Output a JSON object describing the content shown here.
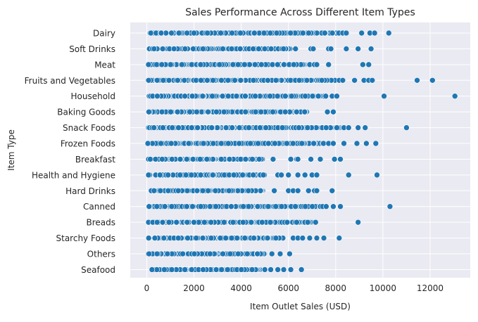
{
  "chart_data": {
    "type": "scatter",
    "title": "Sales Performance Across Different Item Types",
    "xlabel": "Item Outlet Sales (USD)",
    "ylabel": "Item Type",
    "xlim": [
      -700,
      13700
    ],
    "x_ticks": [
      "0",
      "2000",
      "4000",
      "6000",
      "8000",
      "10000",
      "12000"
    ],
    "grid": true,
    "legend": "none",
    "colors": {
      "point": "#1f77b4",
      "plot_bg": "#eaeaf2",
      "grid": "#ffffff"
    },
    "categories": [
      "Dairy",
      "Soft Drinks",
      "Meat",
      "Fruits and Vegetables",
      "Household",
      "Baking Goods",
      "Snack Foods",
      "Frozen Foods",
      "Breakfast",
      "Health and Hygiene",
      "Hard Drinks",
      "Canned",
      "Breads",
      "Starchy Foods",
      "Others",
      "Seafood"
    ],
    "series": [
      {
        "category": "Dairy",
        "dense_range": [
          40,
          8200
        ],
        "x": [
          8300,
          8450,
          9100,
          9450,
          9650,
          10250
        ]
      },
      {
        "category": "Soft Drinks",
        "dense_range": [
          40,
          6100
        ],
        "x": [
          6300,
          6950,
          7050,
          7700,
          7800,
          8450,
          8950,
          9500
        ]
      },
      {
        "category": "Meat",
        "dense_range": [
          40,
          6700
        ],
        "x": [
          6900,
          7100,
          7200,
          7700,
          9150,
          9400
        ]
      },
      {
        "category": "Fruits and Vegetables",
        "dense_range": [
          40,
          8000
        ],
        "x": [
          8150,
          8300,
          8800,
          9200,
          9400,
          9550,
          11450,
          12100
        ]
      },
      {
        "category": "Household",
        "dense_range": [
          40,
          7700
        ],
        "x": [
          7850,
          8050,
          10050,
          13050
        ]
      },
      {
        "category": "Baking Goods",
        "dense_range": [
          40,
          6800
        ],
        "x": [
          7650,
          7900
        ]
      },
      {
        "category": "Snack Foods",
        "dense_range": [
          40,
          8200
        ],
        "x": [
          8350,
          8550,
          8950,
          9250,
          11000
        ]
      },
      {
        "category": "Frozen Foods",
        "dense_range": [
          40,
          7500
        ],
        "x": [
          7700,
          7900,
          8350,
          8900,
          9300,
          9700
        ]
      },
      {
        "category": "Breakfast",
        "dense_range": [
          40,
          4900
        ],
        "x": [
          5350,
          6100,
          6350,
          6400,
          6950,
          7350,
          7950,
          8200
        ]
      },
      {
        "category": "Health and Hygiene",
        "dense_range": [
          40,
          5000
        ],
        "x": [
          5550,
          5700,
          6000,
          6400,
          6700,
          7000,
          7200,
          8550,
          9750
        ]
      },
      {
        "category": "Hard Drinks",
        "dense_range": [
          40,
          5000
        ],
        "x": [
          5400,
          6000,
          6200,
          6400,
          6850,
          7100,
          7200,
          7850
        ]
      },
      {
        "category": "Canned",
        "dense_range": [
          40,
          7500
        ],
        "x": [
          7600,
          7900,
          8200,
          10300
        ]
      },
      {
        "category": "Breads",
        "dense_range": [
          40,
          7000
        ],
        "x": [
          7150,
          8950
        ]
      },
      {
        "category": "Starchy Foods",
        "dense_range": [
          40,
          5800
        ],
        "x": [
          6200,
          6400,
          6600,
          6900,
          7200,
          7500,
          8150
        ]
      },
      {
        "category": "Others",
        "dense_range": [
          40,
          5000
        ],
        "x": [
          5300,
          5650,
          6050
        ]
      },
      {
        "category": "Seafood",
        "dense_range": [
          100,
          4800
        ],
        "x": [
          5000,
          5250,
          5550,
          5800,
          6100,
          6550
        ]
      }
    ]
  }
}
